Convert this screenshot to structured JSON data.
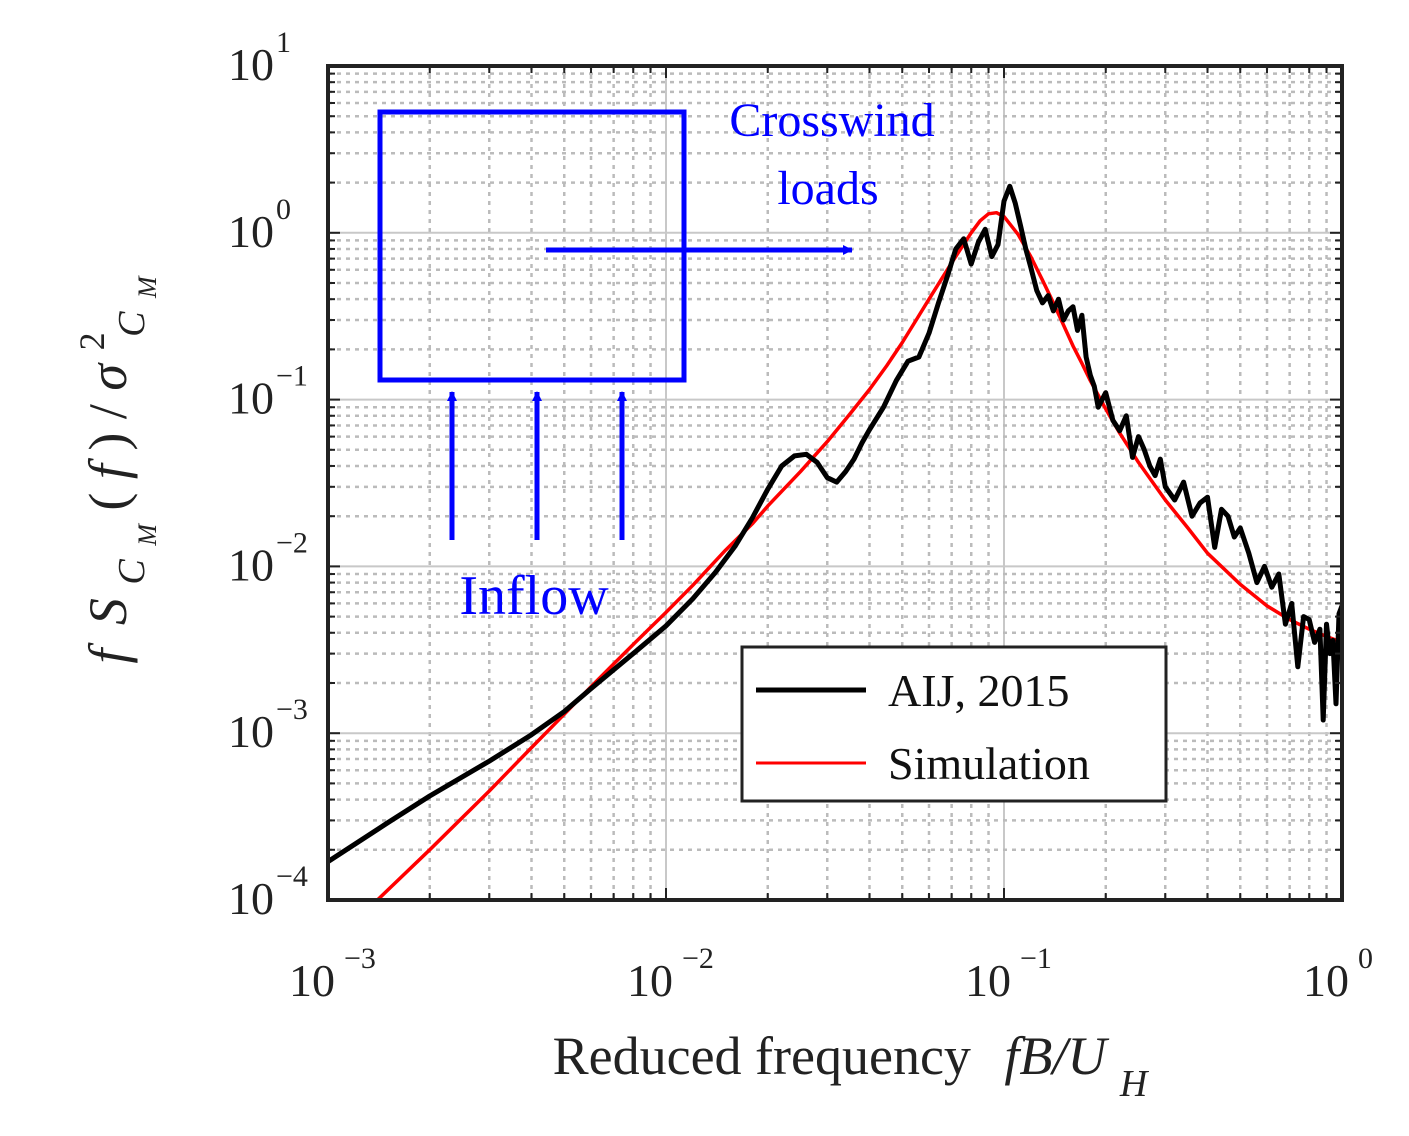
{
  "chart_data": {
    "type": "line",
    "xscale": "log",
    "yscale": "log",
    "xlim": [
      0.001,
      1
    ],
    "ylim": [
      0.0001,
      10
    ],
    "grid": true,
    "x_ticks": [
      {
        "base": "10",
        "exp": "−3",
        "value": 0.001
      },
      {
        "base": "10",
        "exp": "−2",
        "value": 0.01
      },
      {
        "base": "10",
        "exp": "−1",
        "value": 0.1
      },
      {
        "base": "10",
        "exp": "0",
        "value": 1
      }
    ],
    "y_ticks": [
      {
        "base": "10",
        "exp": "−4",
        "value": 0.0001
      },
      {
        "base": "10",
        "exp": "−3",
        "value": 0.001
      },
      {
        "base": "10",
        "exp": "−2",
        "value": 0.01
      },
      {
        "base": "10",
        "exp": "−1",
        "value": 0.1
      },
      {
        "base": "10",
        "exp": "0",
        "value": 1
      },
      {
        "base": "10",
        "exp": "1",
        "value": 10
      }
    ],
    "xlabel": {
      "text": "Reduced frequency",
      "math_main": "fB/U",
      "math_sub": "H"
    },
    "ylabel": {
      "f": "f",
      "S": "S",
      "C": "C",
      "M": "M",
      "open": " (",
      "farg": "f",
      "close": ") / ",
      "sigma": "σ",
      "two": "2"
    },
    "legend": {
      "position": "bottom-right",
      "entries": [
        "AIJ, 2015",
        "Simulation"
      ]
    },
    "series": [
      {
        "name": "AIJ, 2015",
        "color": "#000000",
        "x": [
          0.001,
          0.0015,
          0.002,
          0.003,
          0.004,
          0.005,
          0.006,
          0.007,
          0.008,
          0.01,
          0.012,
          0.014,
          0.016,
          0.018,
          0.02,
          0.022,
          0.024,
          0.026,
          0.028,
          0.03,
          0.032,
          0.034,
          0.036,
          0.038,
          0.04,
          0.044,
          0.048,
          0.052,
          0.056,
          0.06,
          0.064,
          0.068,
          0.072,
          0.076,
          0.08,
          0.084,
          0.088,
          0.092,
          0.096,
          0.1,
          0.104,
          0.108,
          0.112,
          0.116,
          0.12,
          0.125,
          0.13,
          0.135,
          0.14,
          0.145,
          0.15,
          0.155,
          0.16,
          0.165,
          0.17,
          0.175,
          0.18,
          0.185,
          0.19,
          0.2,
          0.21,
          0.22,
          0.23,
          0.24,
          0.25,
          0.26,
          0.27,
          0.28,
          0.29,
          0.3,
          0.32,
          0.34,
          0.36,
          0.38,
          0.4,
          0.42,
          0.44,
          0.46,
          0.48,
          0.5,
          0.53,
          0.56,
          0.59,
          0.62,
          0.65,
          0.68,
          0.71,
          0.74,
          0.77,
          0.8,
          0.83,
          0.86,
          0.88,
          0.9,
          0.92,
          0.94,
          0.96,
          0.98,
          1.0
        ],
        "y": [
          0.00017,
          0.00029,
          0.00042,
          0.00068,
          0.00098,
          0.00135,
          0.00185,
          0.0024,
          0.003,
          0.0044,
          0.0064,
          0.0092,
          0.0132,
          0.0195,
          0.029,
          0.04,
          0.046,
          0.047,
          0.042,
          0.034,
          0.032,
          0.037,
          0.044,
          0.055,
          0.066,
          0.09,
          0.13,
          0.17,
          0.18,
          0.25,
          0.38,
          0.55,
          0.8,
          0.92,
          0.65,
          0.88,
          1.05,
          0.72,
          0.85,
          1.55,
          1.9,
          1.5,
          1.1,
          0.8,
          0.62,
          0.45,
          0.38,
          0.42,
          0.34,
          0.4,
          0.3,
          0.34,
          0.36,
          0.26,
          0.32,
          0.18,
          0.14,
          0.12,
          0.09,
          0.11,
          0.075,
          0.065,
          0.08,
          0.045,
          0.06,
          0.05,
          0.04,
          0.035,
          0.044,
          0.03,
          0.025,
          0.032,
          0.02,
          0.024,
          0.026,
          0.013,
          0.022,
          0.02,
          0.015,
          0.017,
          0.012,
          0.008,
          0.01,
          0.0075,
          0.009,
          0.0045,
          0.006,
          0.0025,
          0.005,
          0.0048,
          0.0035,
          0.0042,
          0.0012,
          0.0045,
          0.003,
          0.0036,
          0.0015,
          0.0052,
          0.0058
        ]
      },
      {
        "name": "Simulation",
        "color": "#ff0000",
        "x": [
          0.0014,
          0.002,
          0.003,
          0.004,
          0.005,
          0.006,
          0.007,
          0.008,
          0.009,
          0.01,
          0.012,
          0.015,
          0.018,
          0.02,
          0.025,
          0.03,
          0.035,
          0.04,
          0.045,
          0.05,
          0.055,
          0.06,
          0.065,
          0.07,
          0.075,
          0.08,
          0.085,
          0.09,
          0.095,
          0.1,
          0.11,
          0.12,
          0.13,
          0.14,
          0.15,
          0.16,
          0.17,
          0.18,
          0.2,
          0.22,
          0.25,
          0.3,
          0.35,
          0.4,
          0.5,
          0.6,
          0.7,
          0.8,
          0.9,
          1.0
        ],
        "y": [
          0.0001,
          0.0002,
          0.00045,
          0.00082,
          0.0013,
          0.0019,
          0.0026,
          0.0034,
          0.0043,
          0.0053,
          0.0077,
          0.0125,
          0.018,
          0.023,
          0.037,
          0.056,
          0.082,
          0.115,
          0.16,
          0.22,
          0.3,
          0.4,
          0.52,
          0.66,
          0.82,
          1.0,
          1.18,
          1.3,
          1.32,
          1.25,
          0.98,
          0.72,
          0.52,
          0.38,
          0.28,
          0.21,
          0.165,
          0.13,
          0.088,
          0.063,
          0.042,
          0.025,
          0.017,
          0.012,
          0.0078,
          0.0058,
          0.0048,
          0.0042,
          0.0038,
          0.0035
        ]
      }
    ]
  },
  "inset": {
    "crosswind_line1": "Crosswind",
    "crosswind_line2": "loads",
    "inflow": "Inflow",
    "color": "#0000ff"
  }
}
